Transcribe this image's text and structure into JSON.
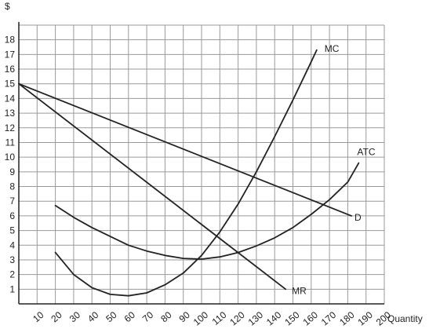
{
  "chart_data": {
    "type": "line",
    "ylabel": "$",
    "xlabel": "Quantity",
    "xlim": [
      0,
      200
    ],
    "ylim": [
      0,
      19
    ],
    "x_ticks": [
      10,
      20,
      30,
      40,
      50,
      60,
      70,
      80,
      90,
      100,
      110,
      120,
      130,
      140,
      150,
      160,
      170,
      180,
      190,
      200
    ],
    "y_ticks": [
      1,
      2,
      3,
      4,
      5,
      6,
      7,
      8,
      9,
      10,
      11,
      12,
      13,
      14,
      15,
      16,
      17,
      18
    ],
    "grid": true,
    "series": [
      {
        "name": "D",
        "color": "#222222",
        "points": [
          [
            0,
            15
          ],
          [
            182,
            6
          ]
        ]
      },
      {
        "name": "MR",
        "color": "#222222",
        "points": [
          [
            0,
            15
          ],
          [
            146,
            1
          ]
        ]
      },
      {
        "name": "MC",
        "color": "#222222",
        "points": [
          [
            20,
            3.5
          ],
          [
            30,
            2
          ],
          [
            40,
            1.1
          ],
          [
            50,
            0.65
          ],
          [
            60,
            0.55
          ],
          [
            70,
            0.75
          ],
          [
            80,
            1.3
          ],
          [
            90,
            2.1
          ],
          [
            100,
            3.3
          ],
          [
            110,
            4.9
          ],
          [
            120,
            6.8
          ],
          [
            130,
            9.0
          ],
          [
            140,
            11.4
          ],
          [
            150,
            13.9
          ],
          [
            160,
            16.5
          ],
          [
            163,
            17.3
          ]
        ]
      },
      {
        "name": "ATC",
        "color": "#222222",
        "points": [
          [
            20,
            6.7
          ],
          [
            30,
            5.9
          ],
          [
            40,
            5.2
          ],
          [
            50,
            4.6
          ],
          [
            60,
            4.0
          ],
          [
            70,
            3.6
          ],
          [
            80,
            3.3
          ],
          [
            90,
            3.1
          ],
          [
            100,
            3.05
          ],
          [
            110,
            3.2
          ],
          [
            120,
            3.5
          ],
          [
            130,
            3.95
          ],
          [
            140,
            4.5
          ],
          [
            150,
            5.2
          ],
          [
            160,
            6.1
          ],
          [
            170,
            7.1
          ],
          [
            180,
            8.3
          ],
          [
            186,
            9.6
          ]
        ]
      }
    ],
    "annotations": [
      "MC",
      "ATC",
      "D",
      "MR"
    ]
  }
}
